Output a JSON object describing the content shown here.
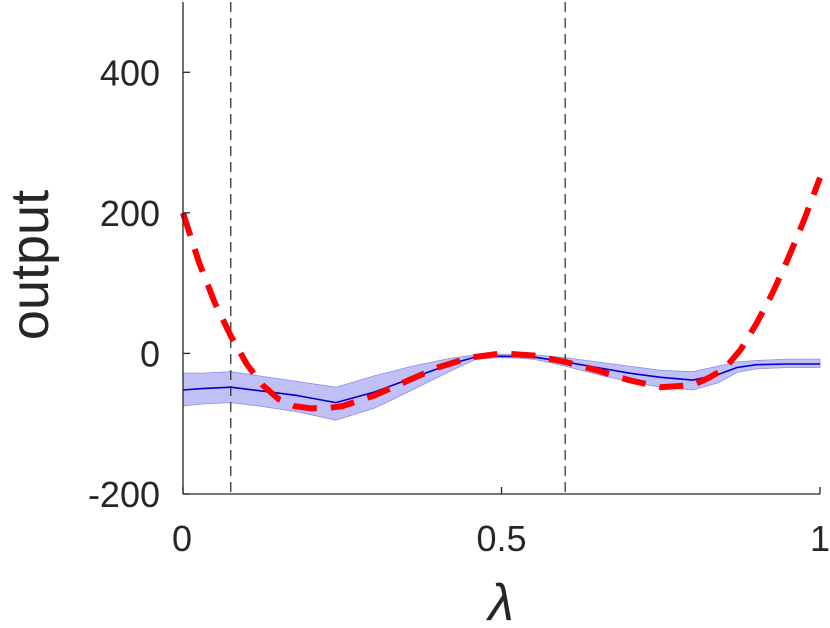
{
  "chart_data": {
    "type": "line",
    "title": "",
    "xlabel": "λ",
    "ylabel": "output",
    "xlim": [
      0,
      1
    ],
    "ylim": [
      -200,
      500
    ],
    "x_ticks": [
      0,
      0.5,
      1
    ],
    "x_tick_labels": [
      "0",
      "0.5",
      "1"
    ],
    "y_ticks": [
      -200,
      0,
      200,
      400
    ],
    "y_tick_labels": [
      "-200",
      "0",
      "200",
      "400"
    ],
    "grid": false,
    "legend": "none",
    "vertical_markers": [
      0.075,
      0.6
    ],
    "series": [
      {
        "kind": "line",
        "color": "#0000cc",
        "x": [
          0,
          0.03,
          0.075,
          0.12,
          0.18,
          0.24,
          0.3,
          0.36,
          0.42,
          0.46,
          0.5,
          0.55,
          0.6,
          0.65,
          0.7,
          0.75,
          0.8,
          0.84,
          0.87,
          0.9,
          0.95,
          1.0
        ],
        "y": [
          -52,
          -50,
          -48,
          -53,
          -60,
          -70,
          -55,
          -35,
          -15,
          -5,
          -4,
          -5,
          -12,
          -20,
          -28,
          -34,
          -38,
          -30,
          -20,
          -16,
          -15,
          -15
        ],
        "lower": [
          -75,
          -72,
          -70,
          -75,
          -83,
          -95,
          -78,
          -52,
          -25,
          -8,
          -6,
          -8,
          -18,
          -30,
          -40,
          -48,
          -52,
          -42,
          -27,
          -22,
          -20,
          -20
        ],
        "upper": [
          -28,
          -28,
          -26,
          -32,
          -40,
          -48,
          -32,
          -18,
          -7,
          -2,
          -1,
          -2,
          -6,
          -12,
          -18,
          -24,
          -26,
          -18,
          -12,
          -10,
          -8,
          -8
        ],
        "band_color": "#b5b5f5"
      },
      {
        "kind": "dashed-line",
        "color": "#ff0000",
        "x": [
          0,
          0.025,
          0.05,
          0.075,
          0.1,
          0.125,
          0.15,
          0.175,
          0.2,
          0.225,
          0.25,
          0.3,
          0.35,
          0.4,
          0.45,
          0.5,
          0.55,
          0.6,
          0.65,
          0.7,
          0.75,
          0.8,
          0.825,
          0.85,
          0.875,
          0.9,
          0.925,
          0.95,
          0.975,
          1.0
        ],
        "y": [
          200,
          130,
          72,
          25,
          -15,
          -45,
          -65,
          -75,
          -78,
          -78,
          -75,
          -60,
          -40,
          -20,
          -6,
          0,
          -3,
          -12,
          -24,
          -38,
          -48,
          -45,
          -35,
          -22,
          5,
          42,
          85,
          135,
          190,
          250
        ]
      }
    ]
  }
}
